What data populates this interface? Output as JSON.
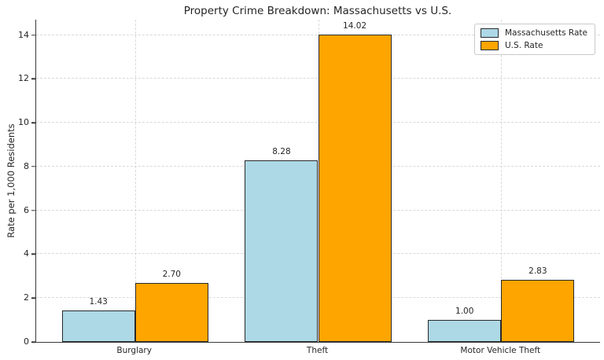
{
  "title": "Property Crime Breakdown: Massachusetts vs U.S.",
  "chart_data": {
    "type": "bar",
    "title": "Property Crime Breakdown: Massachusetts vs U.S.",
    "xlabel": "",
    "ylabel": "Rate per 1,000 Residents",
    "categories": [
      "Burglary",
      "Theft",
      "Motor Vehicle Theft"
    ],
    "series": [
      {
        "name": "Massachusetts Rate",
        "color": "#ADD8E6",
        "values": [
          1.43,
          8.28,
          1.0
        ],
        "labels": [
          "1.43",
          "8.28",
          "1.00"
        ]
      },
      {
        "name": "U.S. Rate",
        "color": "#FFA500",
        "values": [
          2.7,
          14.02,
          2.83
        ],
        "labels": [
          "2.70",
          "14.02",
          "2.83"
        ]
      }
    ],
    "yticks": [
      0,
      2,
      4,
      6,
      8,
      10,
      12,
      14
    ],
    "ylim": [
      0,
      14.7
    ],
    "grid": "dashed-both-axes",
    "legend_position": "upper-right",
    "bar_edge_color": "#2a2a2a",
    "grid_color": "#d9d9d9",
    "axis_color": "#3a3a3a",
    "text_color": "#262626"
  }
}
